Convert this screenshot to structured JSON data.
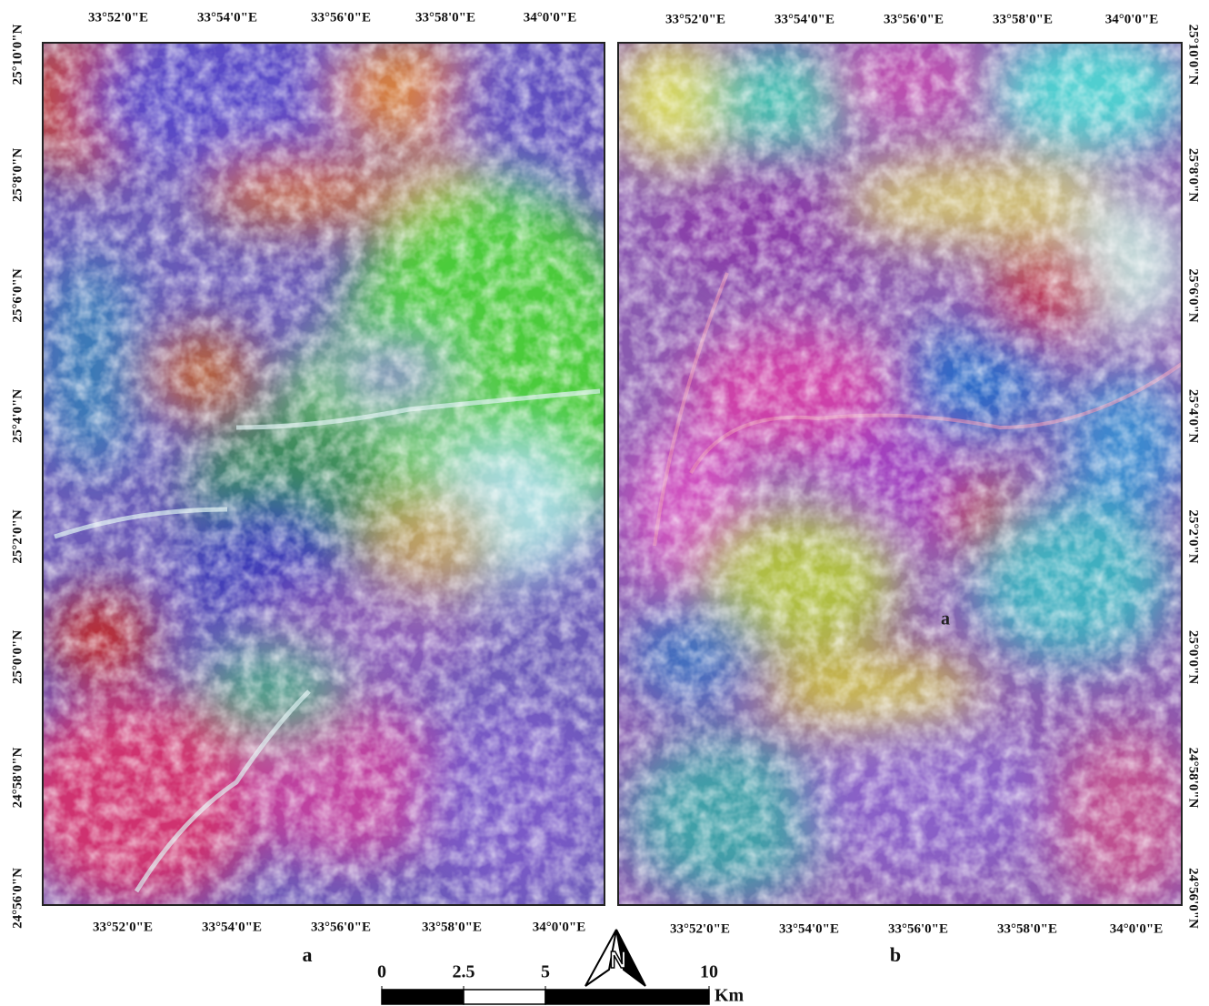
{
  "panels": [
    {
      "label": "a",
      "top_labels": [
        "33°52'0\"E",
        "33°54'0\"E",
        "33°56'0\"E",
        "33°58'0\"E",
        "34°0'0\"E"
      ],
      "bottom_labels": [
        "33°52'0\"E",
        "33°54'0\"E",
        "33°56'0\"E",
        "33°58'0\"E",
        "34°0'0\"E"
      ],
      "side_labels": [
        "25°10'0\"N",
        "25°8'0\"N",
        "25°6'0\"N",
        "25°4'0\"N",
        "25°2'0\"N",
        "25°0'0\"N",
        "24°58'0\"N",
        "24°56'0\"N"
      ]
    },
    {
      "label": "b",
      "top_labels": [
        "33°52'0\"E",
        "33°54'0\"E",
        "33°56'0\"E",
        "33°58'0\"E",
        "34°0'0\"E"
      ],
      "bottom_labels": [
        "33°52'0\"E",
        "33°54'0\"E",
        "33°56'0\"E",
        "33°58'0\"E",
        "34°0'0\"E"
      ],
      "side_labels": [
        "25°10'0\"N",
        "25°8'0\"N",
        "25°6'0\"N",
        "25°4'0\"N",
        "25°2'0\"N",
        "25°0'0\"N",
        "24°58'0\"N",
        "24°56'0\"N"
      ],
      "annotation": "a"
    }
  ],
  "scale_bar": {
    "ticks": [
      0,
      2.5,
      5,
      10
    ],
    "unit": "Km"
  },
  "north_arrow": "N"
}
